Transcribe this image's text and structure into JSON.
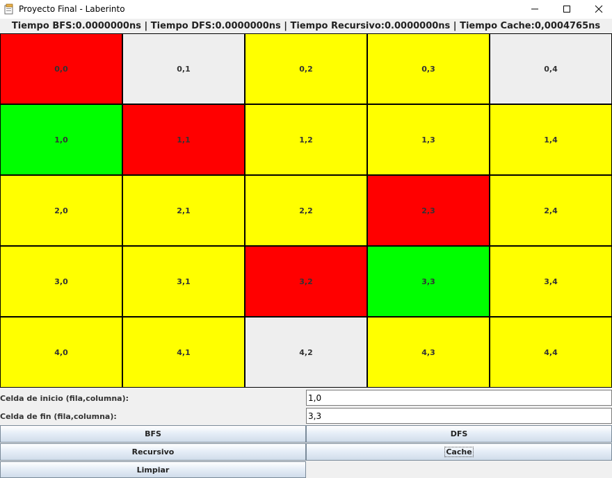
{
  "window": {
    "title": "Proyecto Final - Laberinto"
  },
  "status": {
    "text": "Tiempo BFS:0.0000000ns | Tiempo DFS:0.0000000ns | Tiempo Recursivo:0.0000000ns |  Tiempo Cache:0,0004765ns"
  },
  "colors": {
    "red": "#ff0000",
    "yellow": "#ffff00",
    "green": "#00ff00",
    "gray": "#eeeeee"
  },
  "grid": {
    "rows": [
      [
        {
          "label": "0,0",
          "color": "red"
        },
        {
          "label": "0,1",
          "color": "gray"
        },
        {
          "label": "0,2",
          "color": "yellow"
        },
        {
          "label": "0,3",
          "color": "yellow"
        },
        {
          "label": "0,4",
          "color": "gray"
        }
      ],
      [
        {
          "label": "1,0",
          "color": "green"
        },
        {
          "label": "1,1",
          "color": "red"
        },
        {
          "label": "1,2",
          "color": "yellow"
        },
        {
          "label": "1,3",
          "color": "yellow"
        },
        {
          "label": "1,4",
          "color": "yellow"
        }
      ],
      [
        {
          "label": "2,0",
          "color": "yellow"
        },
        {
          "label": "2,1",
          "color": "yellow"
        },
        {
          "label": "2,2",
          "color": "yellow"
        },
        {
          "label": "2,3",
          "color": "red"
        },
        {
          "label": "2,4",
          "color": "yellow"
        }
      ],
      [
        {
          "label": "3,0",
          "color": "yellow"
        },
        {
          "label": "3,1",
          "color": "yellow"
        },
        {
          "label": "3,2",
          "color": "red"
        },
        {
          "label": "3,3",
          "color": "green"
        },
        {
          "label": "3,4",
          "color": "yellow"
        }
      ],
      [
        {
          "label": "4,0",
          "color": "yellow"
        },
        {
          "label": "4,1",
          "color": "yellow"
        },
        {
          "label": "4,2",
          "color": "gray"
        },
        {
          "label": "4,3",
          "color": "yellow"
        },
        {
          "label": "4,4",
          "color": "yellow"
        }
      ]
    ]
  },
  "form": {
    "start_label": "Celda de inicio (fila,columna):",
    "start_value": "1,0",
    "end_label": "Celda de fin (fila,columna):",
    "end_value": "3,3"
  },
  "buttons": {
    "bfs": "BFS",
    "dfs": "DFS",
    "recursivo": "Recursivo",
    "cache": "Cache",
    "limpiar": "Limpiar"
  }
}
